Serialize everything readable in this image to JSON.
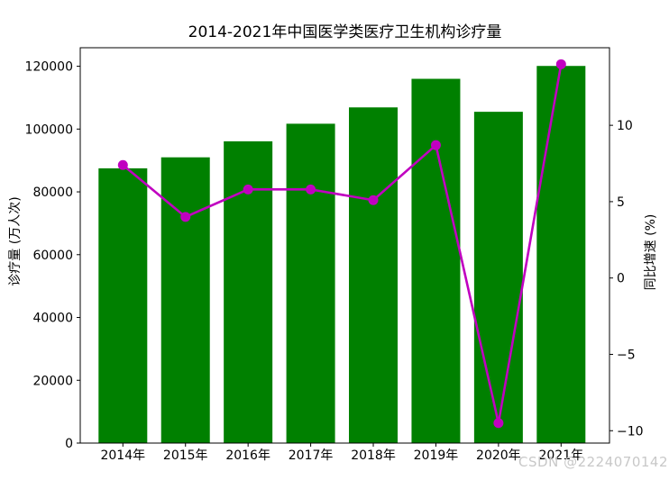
{
  "watermark": {
    "text": "CSDN @2224070142"
  },
  "chart_data": {
    "type": "bar",
    "title": "2014-2021年中国医学类医疗卫生机构诊疗量",
    "categories": [
      "2014年",
      "2015年",
      "2016年",
      "2017年",
      "2018年",
      "2019年",
      "2020年",
      "2021年"
    ],
    "series": [
      {
        "name": "诊疗量",
        "type": "bar",
        "axis": "left_axis",
        "color": "#008000",
        "values": [
          87500,
          91000,
          96100,
          101700,
          106900,
          116000,
          105500,
          120100
        ]
      },
      {
        "name": "同比增速",
        "type": "line",
        "axis": "right_axis",
        "color": "#c000c0",
        "values": [
          7.4,
          4.0,
          5.8,
          5.8,
          5.1,
          8.7,
          -9.5,
          14.0
        ]
      }
    ],
    "left_axis": {
      "label": "诊疗量 (万人次)",
      "lim": [
        0,
        125900
      ],
      "tick_values": [
        0,
        20000,
        40000,
        60000,
        80000,
        100000,
        120000
      ],
      "tick_labels": [
        "0",
        "20000",
        "40000",
        "60000",
        "80000",
        "100000",
        "120000"
      ]
    },
    "right_axis": {
      "label": "同比增速 (%)",
      "lim": [
        -10.81,
        15.08
      ],
      "tick_values": [
        -10,
        -5,
        0,
        5,
        10
      ],
      "tick_labels": [
        "−10",
        "−5",
        "0",
        "5",
        "10"
      ]
    },
    "x_axis": {
      "tick_labels": [
        "2014年",
        "2015年",
        "2016年",
        "2017年",
        "2018年",
        "2019年",
        "2020年",
        "2021年"
      ]
    },
    "grid": false,
    "legend": "none"
  }
}
